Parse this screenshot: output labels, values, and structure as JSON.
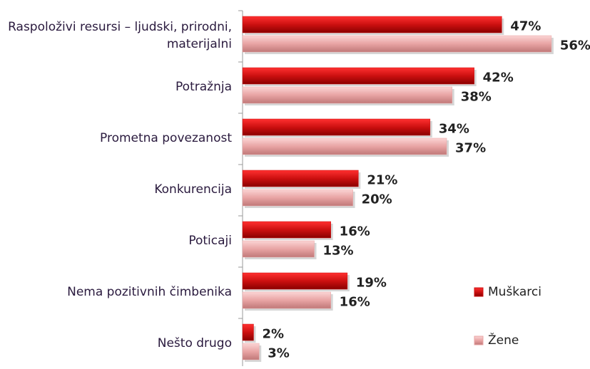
{
  "chart_data": {
    "type": "bar",
    "orientation": "horizontal",
    "categories": [
      "Raspoloživi resursi – ljudski, prirodni, materijalni",
      "Potražnja",
      "Prometna povezanost",
      "Konkurencija",
      "Poticaji",
      "Nema pozitivnih čimbenika",
      "Nešto drugo"
    ],
    "series": [
      {
        "name": "Muškarci",
        "color": "#cc1010",
        "values": [
          47,
          42,
          34,
          21,
          16,
          19,
          2
        ],
        "value_labels": [
          "47%",
          "42%",
          "34%",
          "21%",
          "16%",
          "19%",
          "2%"
        ]
      },
      {
        "name": "Žene",
        "color": "#e8a4a4",
        "values": [
          56,
          38,
          37,
          20,
          13,
          16,
          3
        ],
        "value_labels": [
          "56%",
          "38%",
          "37%",
          "20%",
          "13%",
          "16%",
          "3%"
        ]
      }
    ],
    "xlim": [
      0,
      63
    ],
    "legend": "right"
  }
}
